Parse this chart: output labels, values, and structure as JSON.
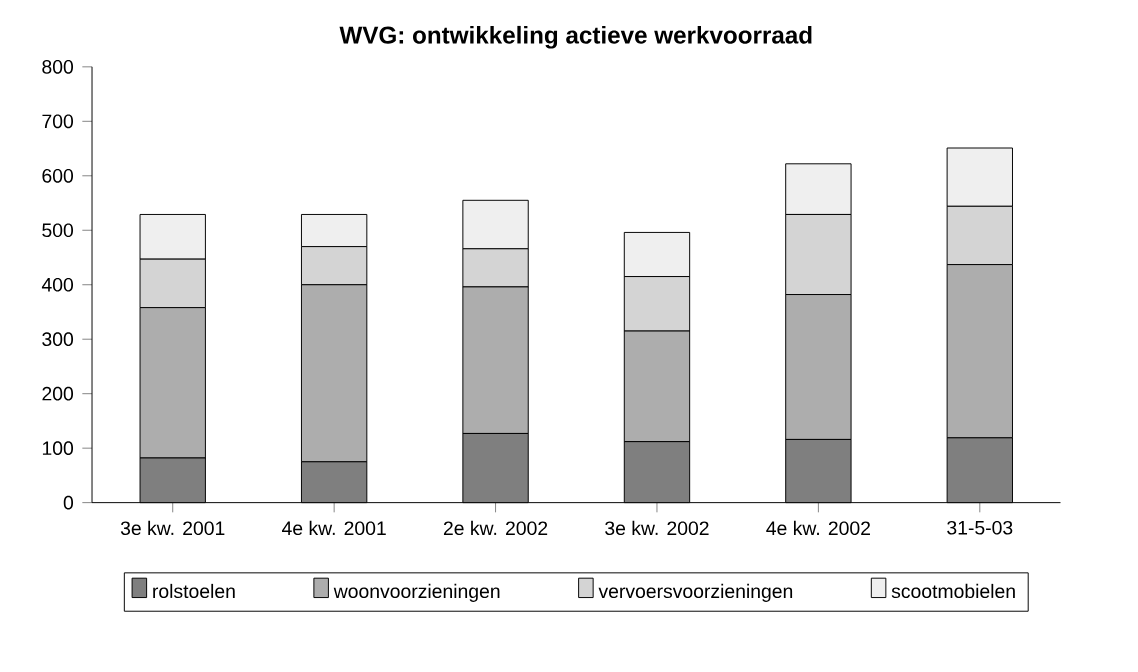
{
  "chart_data": {
    "type": "bar",
    "stacked": true,
    "title": "WVG: ontwikkeling actieve werkvoorraad",
    "categories": [
      "3e kw. 2001",
      "4e kw. 2001",
      "2e kw. 2002",
      "3e kw. 2002",
      "4e kw. 2002",
      "31-5-03"
    ],
    "series": [
      {
        "name": "rolstoelen",
        "color": "#7f7f7f",
        "values": [
          82,
          75,
          127,
          112,
          116,
          119
        ]
      },
      {
        "name": "woonvoorzieningen",
        "color": "#adadad",
        "values": [
          276,
          325,
          269,
          203,
          266,
          318
        ]
      },
      {
        "name": "vervoersvoorzieningen",
        "color": "#d4d4d4",
        "values": [
          89,
          70,
          70,
          100,
          147,
          107
        ]
      },
      {
        "name": "scootmobielen",
        "color": "#efefef",
        "values": [
          82,
          59,
          89,
          81,
          93,
          107
        ]
      }
    ],
    "ylim": [
      0,
      800
    ],
    "yticks": [
      0,
      100,
      200,
      300,
      400,
      500,
      600,
      700,
      800
    ],
    "grid": false,
    "legend": "bottom"
  }
}
